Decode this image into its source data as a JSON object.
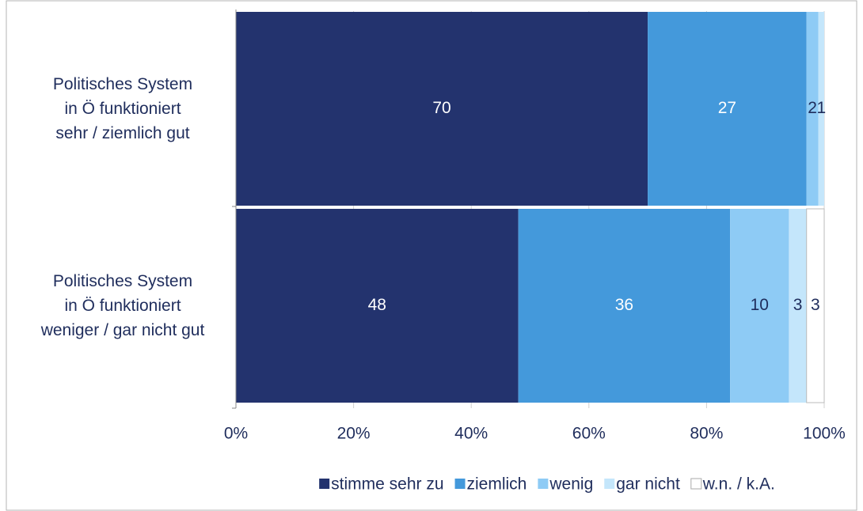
{
  "chart_data": {
    "type": "stacked_barh",
    "categories": [
      "Politisches System\nin Ö funktioniert\nsehr / ziemlich gut",
      "Politisches System\nin Ö funktioniert\nweniger / gar nicht gut"
    ],
    "series": [
      {
        "name": "stimme sehr zu",
        "color": "#23336e",
        "values": [
          70,
          48
        ]
      },
      {
        "name": "ziemlich",
        "color": "#4499db",
        "values": [
          27,
          36
        ]
      },
      {
        "name": "wenig",
        "color": "#8ecbf5",
        "values": [
          2,
          10
        ]
      },
      {
        "name": "gar nicht",
        "color": "#c4e6fb",
        "values": [
          1,
          3
        ]
      },
      {
        "name": "w.n. / k.A.",
        "color": "#ffffff",
        "values": [
          null,
          3
        ]
      }
    ],
    "xlim": [
      0,
      100
    ],
    "xticks": [
      {
        "value": 0,
        "label": "0%"
      },
      {
        "value": 20,
        "label": "20%"
      },
      {
        "value": 40,
        "label": "40%"
      },
      {
        "value": 60,
        "label": "60%"
      },
      {
        "value": 80,
        "label": "80%"
      },
      {
        "value": 100,
        "label": "100%"
      }
    ],
    "grid": true,
    "legend": "bottom"
  }
}
